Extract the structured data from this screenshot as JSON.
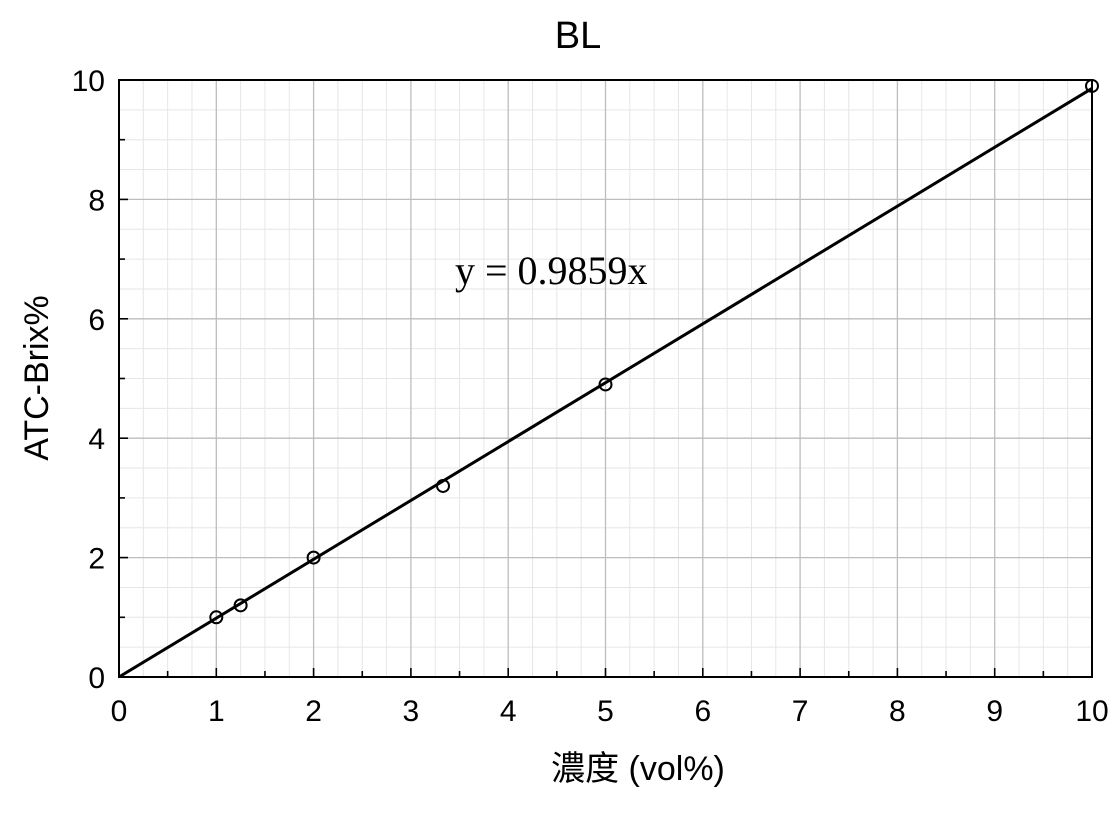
{
  "chart_data": {
    "type": "scatter",
    "title": "BL",
    "xlabel": "濃度 (vol%)",
    "ylabel": "ATC-Brix%",
    "xlim": [
      0,
      10
    ],
    "ylim": [
      0,
      10
    ],
    "x_ticks": [
      "0",
      "1",
      "2",
      "3",
      "4",
      "5",
      "6",
      "7",
      "8",
      "9",
      "10"
    ],
    "y_ticks": [
      "0",
      "2",
      "4",
      "6",
      "8",
      "10"
    ],
    "grid": true,
    "series": [
      {
        "x": [
          1,
          1.25,
          2,
          3.33,
          5,
          10
        ],
        "y": [
          1.0,
          1.2,
          2.0,
          3.2,
          4.9,
          9.9
        ],
        "marker": "open-circle",
        "color": "#000000"
      }
    ],
    "trendline": {
      "slope": 0.9859,
      "intercept": 0,
      "equation_label": "y = 0.9859x",
      "color": "#000000"
    }
  }
}
